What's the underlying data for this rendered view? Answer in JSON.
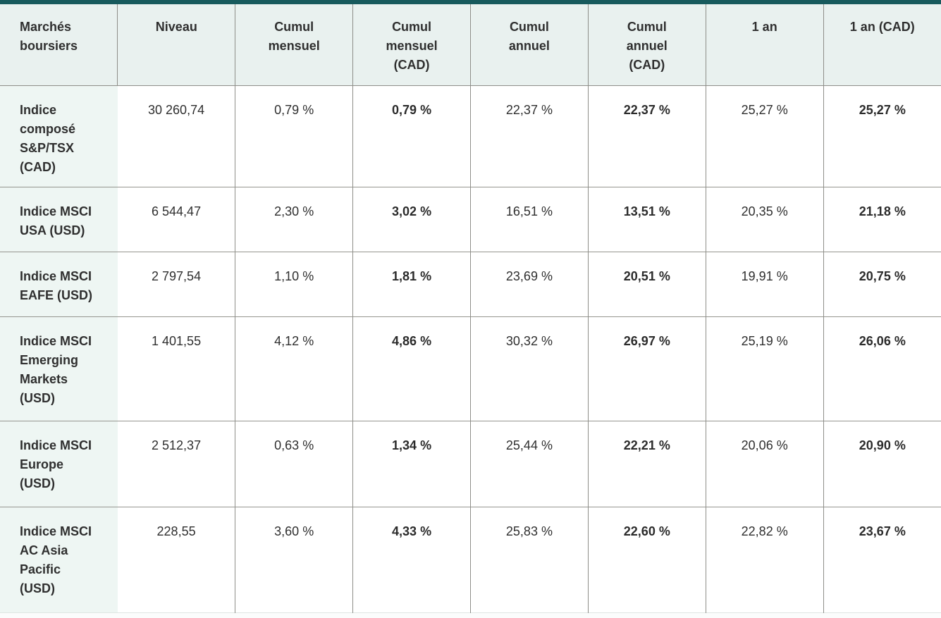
{
  "colors": {
    "accent_top_border": "#175a5d",
    "header_background": "#e9f1ef",
    "row_label_background": "#eef6f3",
    "grid_line": "#8e8e89",
    "text": "#2f2f2f",
    "page_background": "#fbfcfc"
  },
  "chart_data": {
    "type": "table",
    "columns": [
      "Marchés boursiers",
      "Niveau",
      "Cumul mensuel",
      "Cumul mensuel (CAD)",
      "Cumul annuel",
      "Cumul annuel (CAD)",
      "1 an",
      "1 an (CAD)"
    ],
    "bold_value_columns": [
      "Cumul mensuel (CAD)",
      "Cumul annuel (CAD)",
      "1 an (CAD)"
    ],
    "rows": [
      {
        "label": "Indice composé S&P/TSX (CAD)",
        "values": [
          "30 260,74",
          "0,79 %",
          "0,79 %",
          "22,37 %",
          "22,37 %",
          "25,27 %",
          "25,27 %"
        ]
      },
      {
        "label": "Indice MSCI USA (USD)",
        "values": [
          "6 544,47",
          "2,30 %",
          "3,02 %",
          "16,51 %",
          "13,51 %",
          "20,35 %",
          "21,18 %"
        ]
      },
      {
        "label": "Indice MSCI EAFE (USD)",
        "values": [
          "2 797,54",
          "1,10 %",
          "1,81 %",
          "23,69 %",
          "20,51 %",
          "19,91 %",
          "20,75 %"
        ]
      },
      {
        "label": "Indice MSCI Emerging Markets (USD)",
        "values": [
          "1 401,55",
          "4,12 %",
          "4,86 %",
          "30,32 %",
          "26,97 %",
          "25,19 %",
          "26,06 %"
        ]
      },
      {
        "label": "Indice MSCI Europe (USD)",
        "values": [
          "2 512,37",
          "0,63 %",
          "1,34 %",
          "25,44 %",
          "22,21 %",
          "20,06 %",
          "20,90 %"
        ]
      },
      {
        "label": "Indice MSCI AC Asia Pacific (USD)",
        "values": [
          "228,55",
          "3,60 %",
          "4,33 %",
          "25,83 %",
          "22,60 %",
          "22,82 %",
          "23,67 %"
        ]
      }
    ]
  }
}
